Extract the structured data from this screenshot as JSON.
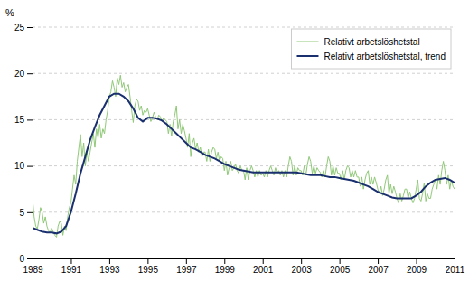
{
  "chart_data": {
    "type": "line",
    "ylabel": "%",
    "xlim": [
      1989,
      2011
    ],
    "xticks": [
      1989,
      1991,
      1993,
      1995,
      1997,
      1999,
      2001,
      2003,
      2005,
      2007,
      2009,
      2011
    ],
    "ylim": [
      0,
      25
    ],
    "yticks": [
      0,
      5,
      10,
      15,
      20,
      25
    ],
    "grid": true,
    "legend": "upper right",
    "series": [
      {
        "name": "Relativt arbetslöshetstal",
        "color": "#90c978",
        "x": [
          1989.0,
          1989.083,
          1989.167,
          1989.25,
          1989.333,
          1989.417,
          1989.5,
          1989.583,
          1989.667,
          1989.75,
          1989.833,
          1989.917,
          1990.0,
          1990.083,
          1990.167,
          1990.25,
          1990.333,
          1990.417,
          1990.5,
          1990.583,
          1990.667,
          1990.75,
          1990.833,
          1990.917,
          1991.0,
          1991.083,
          1991.167,
          1991.25,
          1991.333,
          1991.417,
          1991.5,
          1991.583,
          1991.667,
          1991.75,
          1991.833,
          1991.917,
          1992.0,
          1992.083,
          1992.167,
          1992.25,
          1992.333,
          1992.417,
          1992.5,
          1992.583,
          1992.667,
          1992.75,
          1992.833,
          1992.917,
          1993.0,
          1993.083,
          1993.167,
          1993.25,
          1993.333,
          1993.417,
          1993.5,
          1993.583,
          1993.667,
          1993.75,
          1993.833,
          1993.917,
          1994.0,
          1994.083,
          1994.167,
          1994.25,
          1994.333,
          1994.417,
          1994.5,
          1994.583,
          1994.667,
          1994.75,
          1994.833,
          1994.917,
          1995.0,
          1995.083,
          1995.167,
          1995.25,
          1995.333,
          1995.417,
          1995.5,
          1995.583,
          1995.667,
          1995.75,
          1995.833,
          1995.917,
          1996.0,
          1996.083,
          1996.167,
          1996.25,
          1996.333,
          1996.417,
          1996.5,
          1996.583,
          1996.667,
          1996.75,
          1996.833,
          1996.917,
          1997.0,
          1997.083,
          1997.167,
          1997.25,
          1997.333,
          1997.417,
          1997.5,
          1997.583,
          1997.667,
          1997.75,
          1997.833,
          1997.917,
          1998.0,
          1998.083,
          1998.167,
          1998.25,
          1998.333,
          1998.417,
          1998.5,
          1998.583,
          1998.667,
          1998.75,
          1998.833,
          1998.917,
          1999.0,
          1999.083,
          1999.167,
          1999.25,
          1999.333,
          1999.417,
          1999.5,
          1999.583,
          1999.667,
          1999.75,
          1999.833,
          1999.917,
          2000.0,
          2000.083,
          2000.167,
          2000.25,
          2000.333,
          2000.417,
          2000.5,
          2000.583,
          2000.667,
          2000.75,
          2000.833,
          2000.917,
          2001.0,
          2001.083,
          2001.167,
          2001.25,
          2001.333,
          2001.417,
          2001.5,
          2001.583,
          2001.667,
          2001.75,
          2001.833,
          2001.917,
          2002.0,
          2002.083,
          2002.167,
          2002.25,
          2002.333,
          2002.417,
          2002.5,
          2002.583,
          2002.667,
          2002.75,
          2002.833,
          2002.917,
          2003.0,
          2003.083,
          2003.167,
          2003.25,
          2003.333,
          2003.417,
          2003.5,
          2003.583,
          2003.667,
          2003.75,
          2003.833,
          2003.917,
          2004.0,
          2004.083,
          2004.167,
          2004.25,
          2004.333,
          2004.417,
          2004.5,
          2004.583,
          2004.667,
          2004.75,
          2004.833,
          2004.917,
          2005.0,
          2005.083,
          2005.167,
          2005.25,
          2005.333,
          2005.417,
          2005.5,
          2005.583,
          2005.667,
          2005.75,
          2005.833,
          2005.917,
          2006.0,
          2006.083,
          2006.167,
          2006.25,
          2006.333,
          2006.417,
          2006.5,
          2006.583,
          2006.667,
          2006.75,
          2006.833,
          2006.917,
          2007.0,
          2007.083,
          2007.167,
          2007.25,
          2007.333,
          2007.417,
          2007.5,
          2007.583,
          2007.667,
          2007.75,
          2007.833,
          2007.917,
          2008.0,
          2008.083,
          2008.167,
          2008.25,
          2008.333,
          2008.417,
          2008.5,
          2008.583,
          2008.667,
          2008.75,
          2008.833,
          2008.917,
          2009.0,
          2009.083,
          2009.167,
          2009.25,
          2009.333,
          2009.417,
          2009.5,
          2009.583,
          2009.667,
          2009.75,
          2009.833,
          2009.917,
          2010.0,
          2010.083,
          2010.167,
          2010.25,
          2010.333,
          2010.417,
          2010.5,
          2010.583,
          2010.667,
          2010.75,
          2010.833,
          2010.917,
          2011.0
        ],
        "values": [
          6.5,
          4.5,
          3.5,
          3.2,
          4.2,
          5.5,
          5.0,
          3.8,
          4.5,
          3.5,
          3.0,
          2.8,
          3.3,
          2.8,
          2.5,
          2.3,
          3.5,
          4.0,
          3.8,
          2.5,
          3.5,
          3.0,
          4.5,
          5.5,
          6.0,
          7.5,
          9.0,
          8.0,
          10.5,
          12.0,
          13.4,
          11.0,
          12.5,
          10.0,
          11.5,
          10.5,
          11.5,
          12.5,
          13.5,
          12.0,
          14.0,
          13.0,
          14.5,
          13.0,
          14.0,
          13.5,
          15.0,
          16.0,
          17.5,
          18.0,
          19.2,
          18.5,
          17.5,
          19.5,
          18.8,
          19.8,
          18.5,
          19.0,
          18.0,
          18.5,
          18.8,
          17.5,
          16.0,
          14.7,
          16.5,
          17.2,
          17.0,
          16.0,
          16.5,
          15.5,
          16.0,
          15.8,
          16.2,
          15.5,
          14.8,
          15.2,
          15.8,
          15.3,
          15.0,
          15.5,
          15.3,
          14.8,
          15.2,
          15.0,
          14.8,
          13.5,
          14.5,
          13.2,
          14.8,
          15.5,
          16.5,
          14.0,
          15.0,
          13.5,
          14.5,
          13.8,
          13.0,
          12.0,
          13.5,
          11.0,
          12.5,
          13.0,
          11.8,
          12.5,
          11.5,
          12.0,
          11.0,
          11.5,
          11.5,
          10.5,
          11.8,
          10.5,
          11.5,
          12.0,
          11.8,
          10.8,
          11.5,
          10.5,
          11.0,
          10.8,
          9.5,
          10.5,
          9.0,
          9.8,
          10.5,
          9.5,
          9.8,
          10.2,
          9.5,
          9.2,
          10.0,
          9.5,
          9.5,
          8.5,
          9.8,
          8.5,
          9.5,
          10.0,
          9.5,
          8.8,
          9.5,
          8.8,
          9.5,
          9.0,
          9.2,
          8.8,
          9.5,
          8.8,
          9.5,
          10.0,
          9.5,
          9.0,
          9.8,
          9.2,
          9.5,
          9.0,
          9.5,
          8.8,
          9.5,
          8.8,
          10.0,
          11.0,
          10.5,
          9.0,
          10.0,
          9.0,
          9.8,
          9.5,
          9.5,
          9.0,
          10.0,
          9.0,
          10.2,
          11.0,
          10.5,
          9.2,
          10.0,
          9.2,
          9.8,
          9.5,
          9.3,
          8.8,
          9.5,
          8.8,
          10.0,
          11.0,
          10.5,
          9.0,
          10.0,
          9.0,
          9.8,
          9.2,
          9.2,
          8.5,
          9.5,
          8.5,
          9.5,
          10.0,
          9.8,
          8.8,
          9.5,
          8.8,
          9.5,
          8.8,
          8.8,
          7.8,
          8.8,
          7.5,
          8.5,
          9.2,
          9.5,
          8.0,
          8.8,
          8.0,
          8.8,
          8.2,
          7.5,
          7.0,
          7.8,
          6.8,
          7.5,
          8.5,
          9.0,
          7.0,
          8.0,
          7.0,
          7.8,
          7.2,
          6.5,
          6.0,
          7.0,
          6.2,
          6.8,
          7.5,
          7.5,
          6.5,
          7.2,
          6.5,
          6.0,
          6.5,
          7.5,
          8.5,
          6.5,
          6.2,
          7.0,
          8.2,
          6.2,
          7.0,
          6.5,
          6.5,
          7.5,
          8.0,
          8.5,
          7.5,
          9.0,
          8.0,
          9.5,
          10.5,
          9.5,
          8.0,
          9.0,
          7.5,
          8.5,
          7.8,
          7.5
        ]
      },
      {
        "name": "Relativt arbetslöshetstal, trend",
        "color": "#1a2f6e",
        "x": [
          1989.0,
          1989.25,
          1989.5,
          1989.75,
          1990.0,
          1990.25,
          1990.5,
          1990.75,
          1991.0,
          1991.25,
          1991.5,
          1991.75,
          1992.0,
          1992.25,
          1992.5,
          1992.75,
          1993.0,
          1993.25,
          1993.5,
          1993.75,
          1994.0,
          1994.25,
          1994.5,
          1994.75,
          1995.0,
          1995.25,
          1995.5,
          1995.75,
          1996.0,
          1996.25,
          1996.5,
          1996.75,
          1997.0,
          1997.25,
          1997.5,
          1997.75,
          1998.0,
          1998.25,
          1998.5,
          1998.75,
          1999.0,
          1999.25,
          1999.5,
          1999.75,
          2000.0,
          2000.25,
          2000.5,
          2000.75,
          2001.0,
          2001.25,
          2001.5,
          2001.75,
          2002.0,
          2002.25,
          2002.5,
          2002.75,
          2003.0,
          2003.25,
          2003.5,
          2003.75,
          2004.0,
          2004.25,
          2004.5,
          2004.75,
          2005.0,
          2005.25,
          2005.5,
          2005.75,
          2006.0,
          2006.25,
          2006.5,
          2006.75,
          2007.0,
          2007.25,
          2007.5,
          2007.75,
          2008.0,
          2008.25,
          2008.5,
          2008.75,
          2009.0,
          2009.25,
          2009.5,
          2009.75,
          2010.0,
          2010.25,
          2010.5,
          2010.75,
          2011.0
        ],
        "values": [
          3.3,
          3.1,
          2.9,
          2.8,
          2.8,
          2.7,
          2.9,
          3.5,
          5.0,
          7.0,
          9.2,
          11.0,
          12.8,
          14.2,
          15.5,
          16.5,
          17.5,
          17.8,
          17.8,
          17.5,
          17.0,
          16.2,
          15.2,
          14.8,
          15.2,
          15.2,
          15.1,
          14.9,
          14.5,
          14.0,
          13.5,
          13.0,
          12.5,
          12.0,
          11.8,
          11.5,
          11.2,
          11.0,
          10.8,
          10.5,
          10.2,
          10.0,
          9.8,
          9.6,
          9.5,
          9.4,
          9.3,
          9.3,
          9.3,
          9.3,
          9.3,
          9.3,
          9.3,
          9.3,
          9.3,
          9.3,
          9.2,
          9.1,
          9.0,
          9.0,
          9.0,
          8.9,
          8.8,
          8.8,
          8.7,
          8.6,
          8.5,
          8.4,
          8.2,
          8.0,
          7.8,
          7.5,
          7.2,
          7.0,
          6.8,
          6.6,
          6.5,
          6.5,
          6.5,
          6.5,
          6.8,
          7.2,
          7.8,
          8.2,
          8.5,
          8.6,
          8.7,
          8.5,
          8.2
        ]
      }
    ]
  }
}
